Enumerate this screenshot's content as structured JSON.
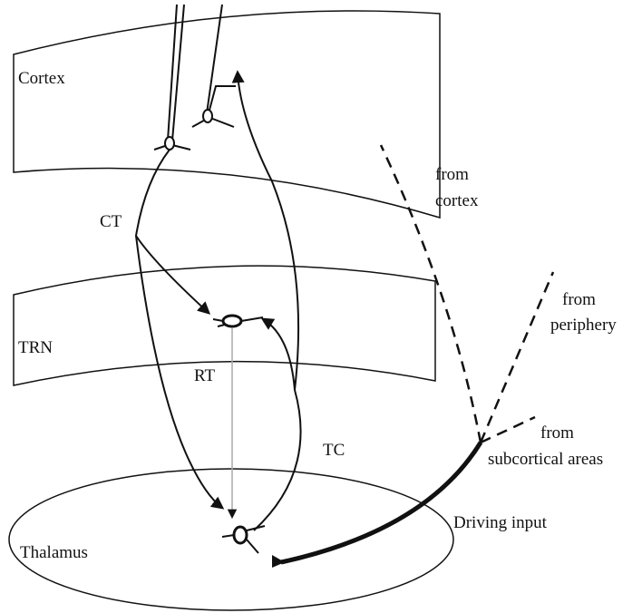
{
  "regions": [
    {
      "label": "Cortex"
    },
    {
      "label": "TRN"
    },
    {
      "label": "Thalamus"
    }
  ],
  "pathways": [
    {
      "label": "CT"
    },
    {
      "label": "RT"
    },
    {
      "label": "TC"
    }
  ],
  "inputs": [
    {
      "lines": [
        "from",
        "cortex"
      ]
    },
    {
      "lines": [
        "from",
        "periphery"
      ]
    },
    {
      "lines": [
        "from",
        "subcortical areas"
      ]
    },
    {
      "lines": [
        "Driving input"
      ]
    }
  ]
}
